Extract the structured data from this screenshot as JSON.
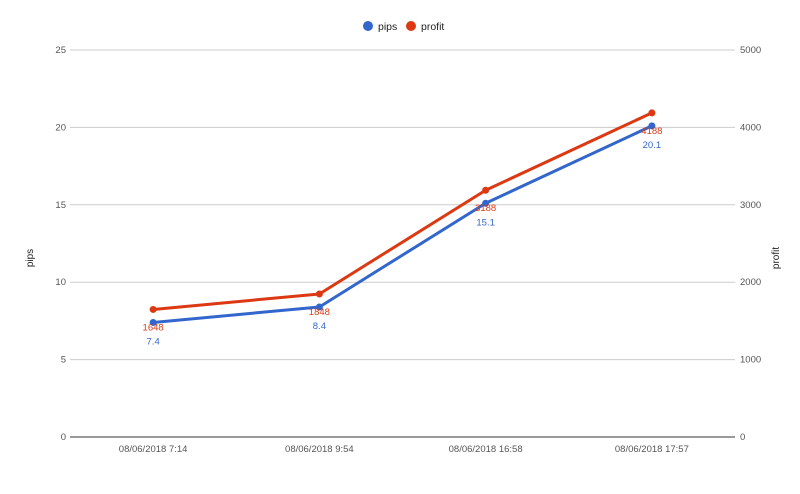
{
  "chart_data": {
    "type": "line",
    "categories": [
      "08/06/2018 7:14",
      "08/06/2018 9:54",
      "08/06/2018 16:58",
      "08/06/2018 17:57"
    ],
    "series": [
      {
        "name": "pips",
        "axis": "left",
        "color": "#3366cc",
        "values": [
          7.4,
          8.4,
          15.1,
          20.1
        ],
        "labels": [
          "7.4",
          "8.4",
          "15.1",
          "20.1"
        ]
      },
      {
        "name": "profit",
        "axis": "right",
        "color": "#dc3912",
        "values": [
          1648,
          1848,
          3188,
          4188
        ],
        "labels": [
          "1648",
          "1848",
          "3188",
          "4188"
        ]
      }
    ],
    "ylabel": "pips",
    "y2label": "profit",
    "ylim": [
      0,
      25
    ],
    "y2lim": [
      0,
      5000
    ],
    "yticks": [
      "0",
      "5",
      "10",
      "15",
      "20",
      "25"
    ],
    "y2ticks": [
      "0",
      "1000",
      "2000",
      "3000",
      "4000",
      "5000"
    ],
    "grid": true,
    "legend": "top"
  }
}
